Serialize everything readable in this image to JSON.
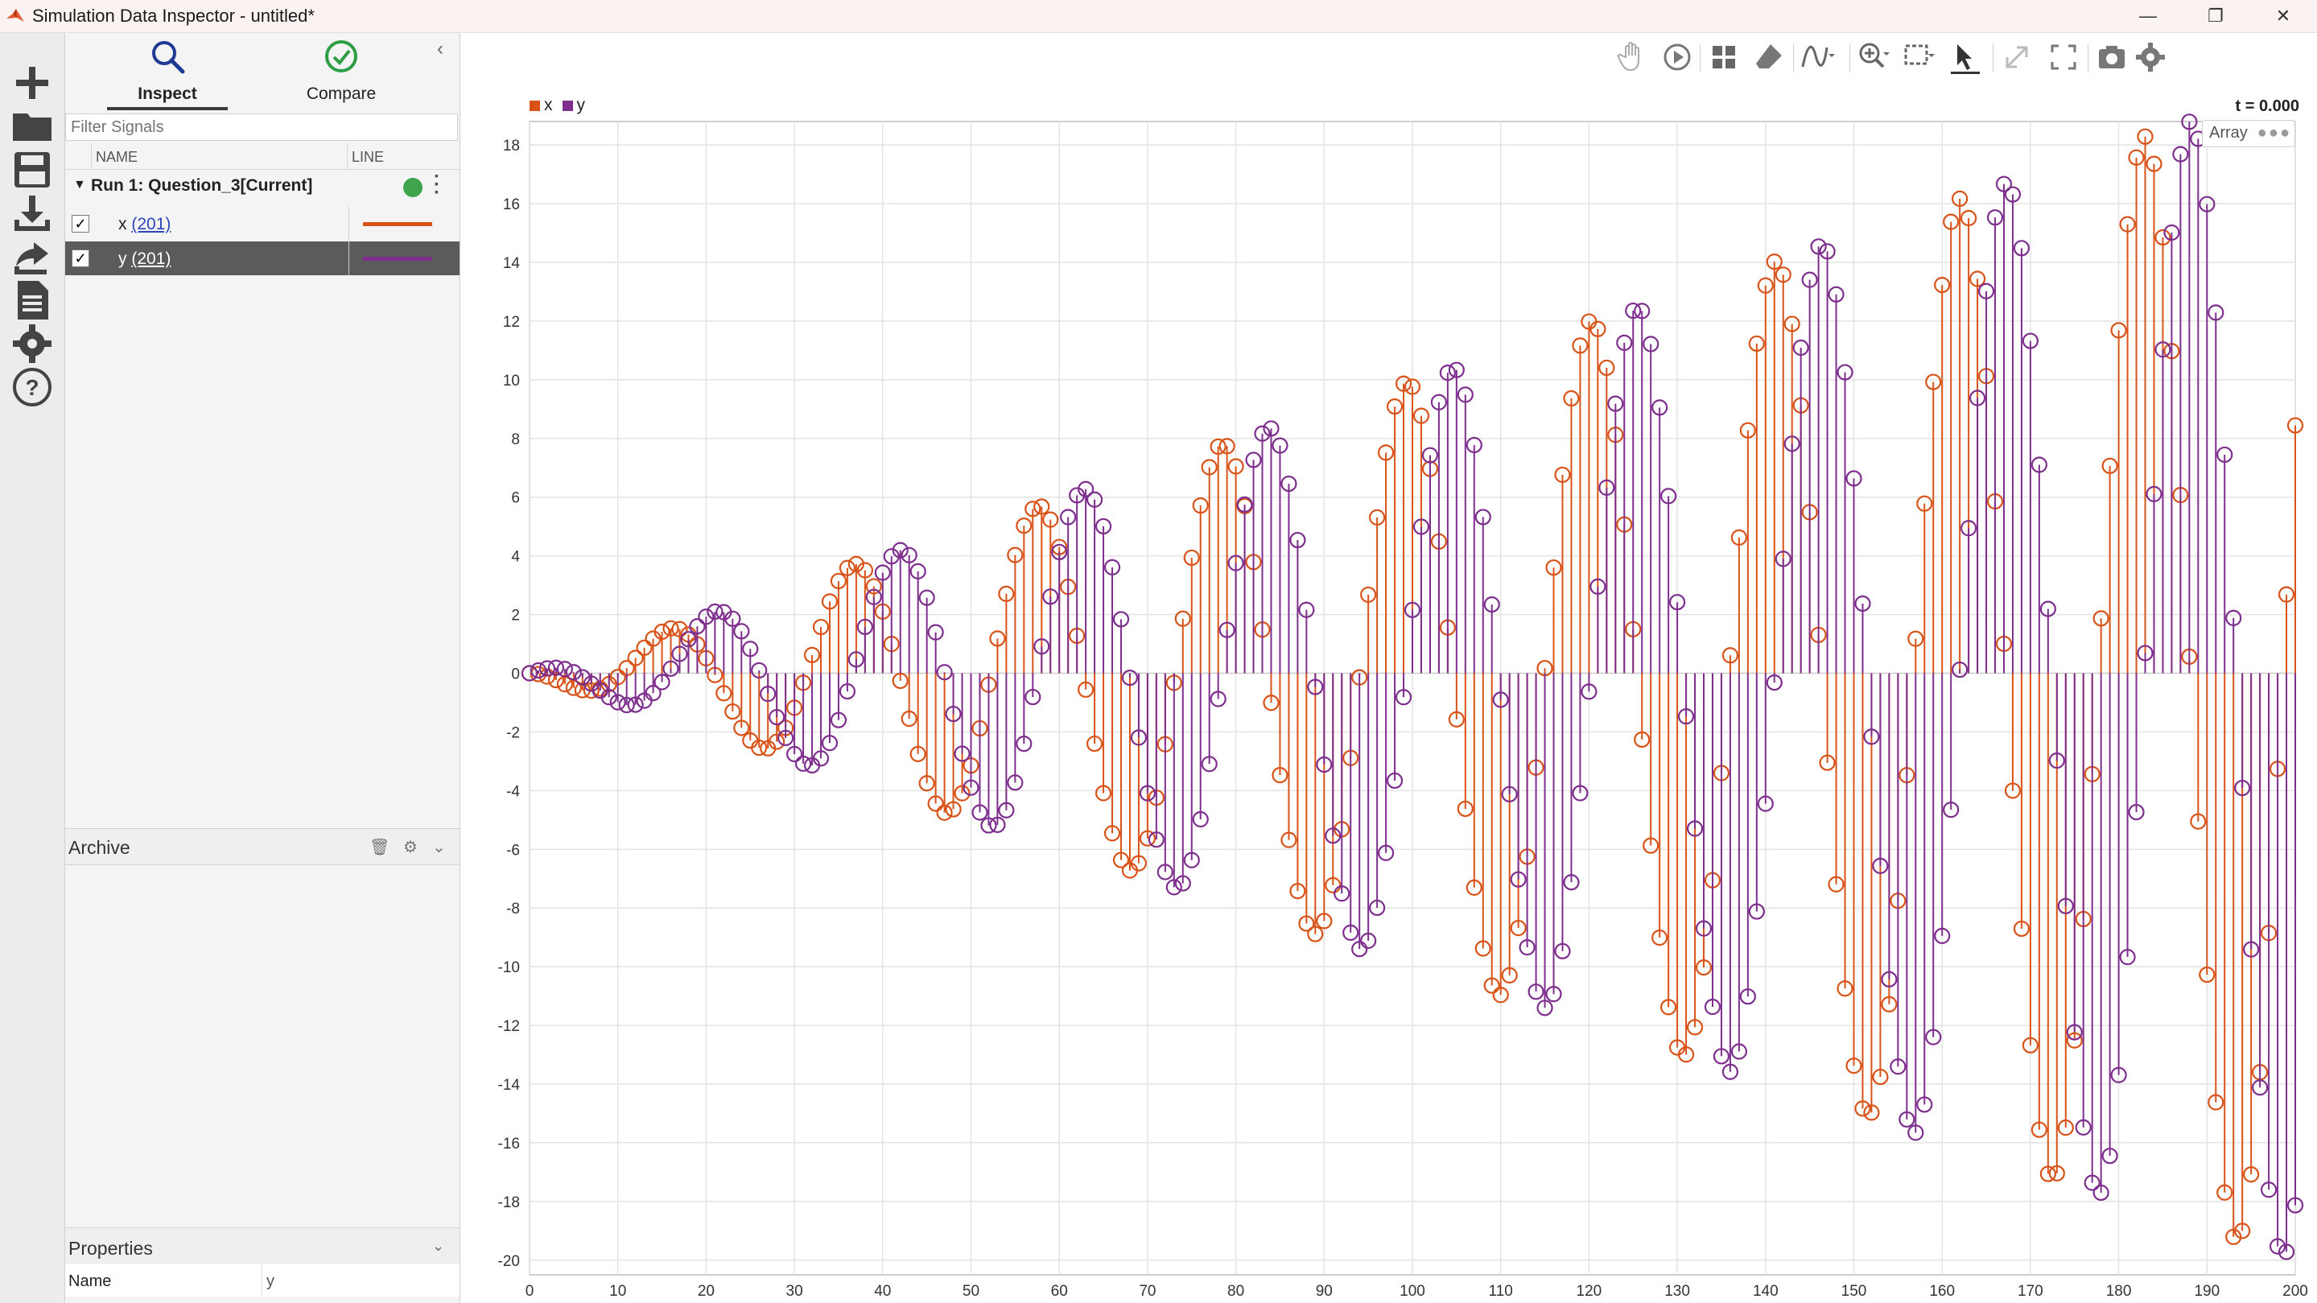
{
  "window": {
    "title": "Simulation Data Inspector - untitled*",
    "controls": [
      "—",
      "❐",
      "✕"
    ]
  },
  "left_toolbar": {
    "icons": [
      "add-icon",
      "folder-icon",
      "save-icon",
      "download-icon",
      "share-icon",
      "report-icon",
      "gear-icon",
      "help-icon"
    ]
  },
  "tabs": [
    {
      "label": "Inspect",
      "active": true
    },
    {
      "label": "Compare",
      "active": false
    }
  ],
  "filter": {
    "placeholder": "Filter Signals"
  },
  "columns": {
    "name": "NAME",
    "line": "LINE"
  },
  "run": {
    "name": "Run 1: Question_3[Current]"
  },
  "signals": [
    {
      "name": "x",
      "count": "(201)",
      "color": "#d95319",
      "checked": true
    },
    {
      "name": "y",
      "count": "(201)",
      "color": "#7e2f8e",
      "checked": true
    }
  ],
  "archive": {
    "label": "Archive"
  },
  "properties": {
    "label": "Properties",
    "name_key": "Name",
    "name_value": "y"
  },
  "plot": {
    "time_readout": "t = 0.000",
    "array_label": "Array",
    "legend": [
      "x",
      "y"
    ]
  },
  "chart_data": {
    "type": "stem",
    "xlim": [
      0,
      200
    ],
    "ylim": [
      -20.5,
      18.8
    ],
    "xticks": [
      0,
      10,
      20,
      30,
      40,
      50,
      60,
      70,
      80,
      90,
      100,
      110,
      120,
      130,
      140,
      150,
      160,
      170,
      180,
      190,
      200
    ],
    "yticks": [
      -20,
      -18,
      -16,
      -14,
      -12,
      -10,
      -8,
      -6,
      -4,
      -2,
      0,
      2,
      4,
      6,
      8,
      10,
      12,
      14,
      16,
      18
    ],
    "grid": true,
    "legend_position": "top-left",
    "series": [
      {
        "name": "x",
        "color": "#d95319",
        "amplitude_points": [
          [
            0,
            0.0
          ],
          [
            5,
            0.5
          ],
          [
            22,
            2.1
          ],
          [
            42,
            4.3
          ],
          [
            63,
            6.2
          ],
          [
            84,
            8.4
          ],
          [
            105,
            10.5
          ],
          [
            126,
            12.6
          ],
          [
            147,
            14.6
          ],
          [
            168,
            16.8
          ],
          [
            189,
            18.9
          ],
          [
            200,
            20.0
          ]
        ],
        "phase_offset": 0
      },
      {
        "name": "y",
        "color": "#7e2f8e",
        "amplitude_points": [
          [
            0,
            0.0
          ],
          [
            5,
            0.5
          ],
          [
            13,
            1.3
          ],
          [
            32,
            3.2
          ],
          [
            53,
            5.3
          ],
          [
            74,
            7.4
          ],
          [
            95,
            9.5
          ],
          [
            116,
            11.5
          ],
          [
            137,
            13.7
          ],
          [
            158,
            15.8
          ],
          [
            179,
            17.9
          ],
          [
            200,
            20.0
          ]
        ],
        "phase_offset": -1.5708
      }
    ],
    "period": 20.9
  }
}
